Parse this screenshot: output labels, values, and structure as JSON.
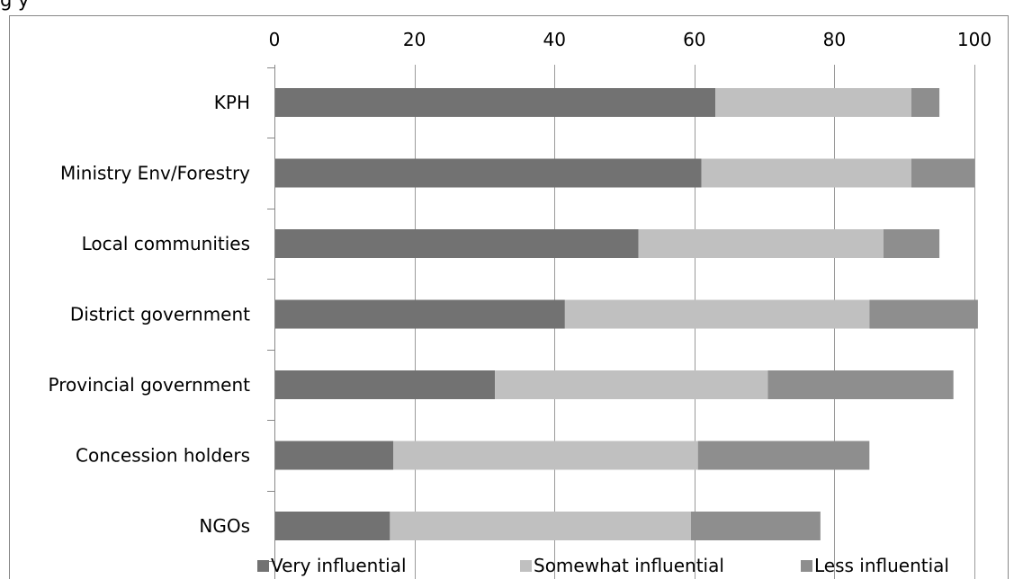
{
  "caption": "g                                                                                                     y",
  "chart_data": {
    "type": "bar",
    "orientation": "horizontal",
    "stacked": true,
    "categories": [
      "KPH",
      "Ministry Env/Forestry",
      "Local communities",
      "District government",
      "Provincial government",
      "Concession holders",
      "NGOs"
    ],
    "series": [
      {
        "name": "Very influential",
        "color": "#727272",
        "values": [
          63,
          61,
          52,
          41.5,
          31.5,
          17,
          16.5
        ]
      },
      {
        "name": "Somewhat influential",
        "color": "#c0c0c0",
        "values": [
          28,
          30,
          35,
          43.5,
          39,
          43.5,
          43
        ]
      },
      {
        "name": "Less influential",
        "color": "#8e8e8e",
        "values": [
          4,
          9,
          8,
          15.5,
          26.5,
          24.5,
          18.5
        ]
      }
    ],
    "xaxis": {
      "position": "top",
      "min": 0,
      "max": 100,
      "ticks": [
        0,
        20,
        40,
        60,
        80,
        100
      ],
      "tick_labels": [
        "0",
        "20",
        "40",
        "60",
        "80",
        "100"
      ]
    },
    "xlabel": "",
    "ylabel": "",
    "grid": "vertical",
    "legend": "bottom"
  }
}
